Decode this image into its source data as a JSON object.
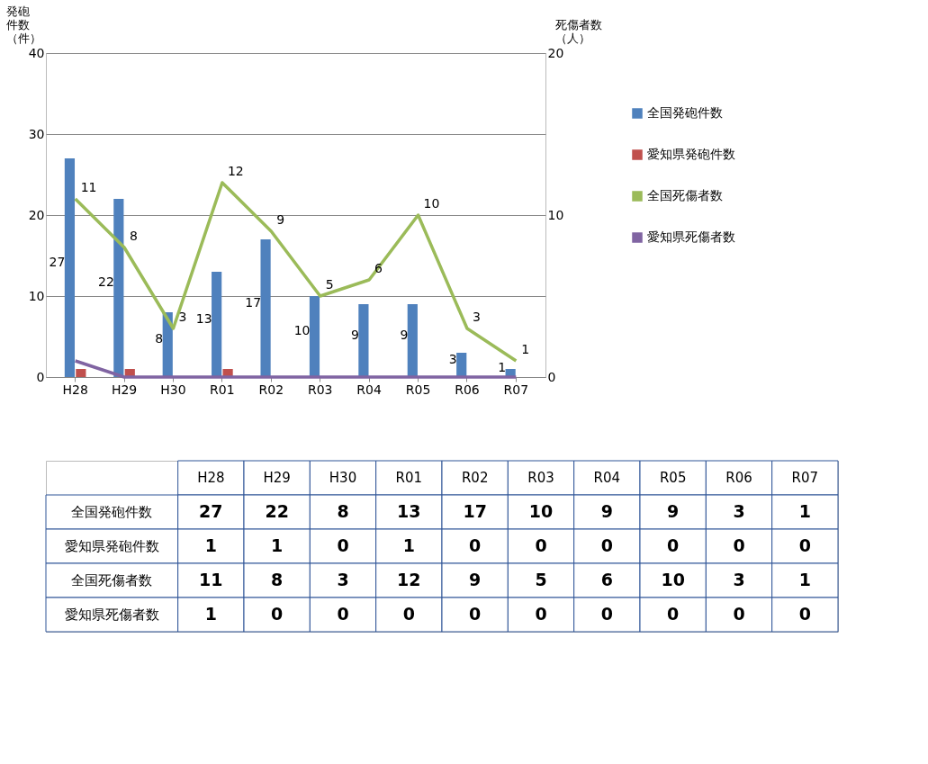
{
  "chart_data": [
    {
      "type": "bar",
      "ylabel": "発砲件数（件）",
      "y2label": "死傷者数（人）",
      "categories": [
        "H28",
        "H29",
        "H30",
        "R01",
        "R02",
        "R03",
        "R04",
        "R05",
        "R06",
        "R07"
      ],
      "series": [
        {
          "name": "全国発砲件数",
          "type": "bar",
          "color": "#4f81bd",
          "values": [
            27,
            22,
            8,
            13,
            17,
            10,
            9,
            9,
            3,
            1
          ],
          "value_labels": [
            "27",
            "22",
            "8",
            "13",
            "17",
            "10",
            "9",
            "9",
            "3",
            "1"
          ]
        },
        {
          "name": "愛知県発砲件数",
          "type": "bar",
          "color": "#c0504d",
          "values": [
            1,
            1,
            0,
            1,
            0,
            0,
            0,
            0,
            0,
            0
          ]
        },
        {
          "name": "全国死傷者数",
          "type": "line",
          "axis": "y2",
          "color": "#9bbb59",
          "values": [
            11,
            8,
            3,
            12,
            9,
            5,
            6,
            10,
            3,
            1
          ],
          "value_labels": [
            "11",
            "8",
            "3",
            "12",
            "9",
            "5",
            "6",
            "10",
            "3",
            "1"
          ]
        },
        {
          "name": "愛知県死傷者数",
          "type": "line",
          "axis": "y2",
          "color": "#8064a2",
          "values": [
            1,
            0,
            0,
            0,
            0,
            0,
            0,
            0,
            0,
            0
          ]
        }
      ],
      "ylim": [
        0,
        40
      ],
      "yticks": [
        0,
        10,
        20,
        30,
        40
      ],
      "y2lim": [
        0,
        20
      ],
      "y2ticks": [
        0,
        10,
        20
      ],
      "grid": "y",
      "legend": "right",
      "marker": "none",
      "line_style": "solid"
    },
    {
      "type": "other",
      "categories": [
        "H28",
        "H29",
        "H30",
        "R01",
        "R02",
        "R03",
        "R04",
        "R05",
        "R06",
        "R07"
      ],
      "series": [
        {
          "name": "全国発砲件数",
          "values": [
            27,
            22,
            8,
            13,
            17,
            10,
            9,
            9,
            3,
            1
          ]
        },
        {
          "name": "愛知県発砲件数",
          "values": [
            1,
            1,
            0,
            1,
            0,
            0,
            0,
            0,
            0,
            0
          ]
        },
        {
          "name": "全国死傷者数",
          "values": [
            11,
            8,
            3,
            12,
            9,
            5,
            6,
            10,
            3,
            1
          ]
        },
        {
          "name": "愛知県死傷者数",
          "values": [
            1,
            0,
            0,
            0,
            0,
            0,
            0,
            0,
            0,
            0
          ]
        }
      ],
      "data_labels": true
    }
  ]
}
